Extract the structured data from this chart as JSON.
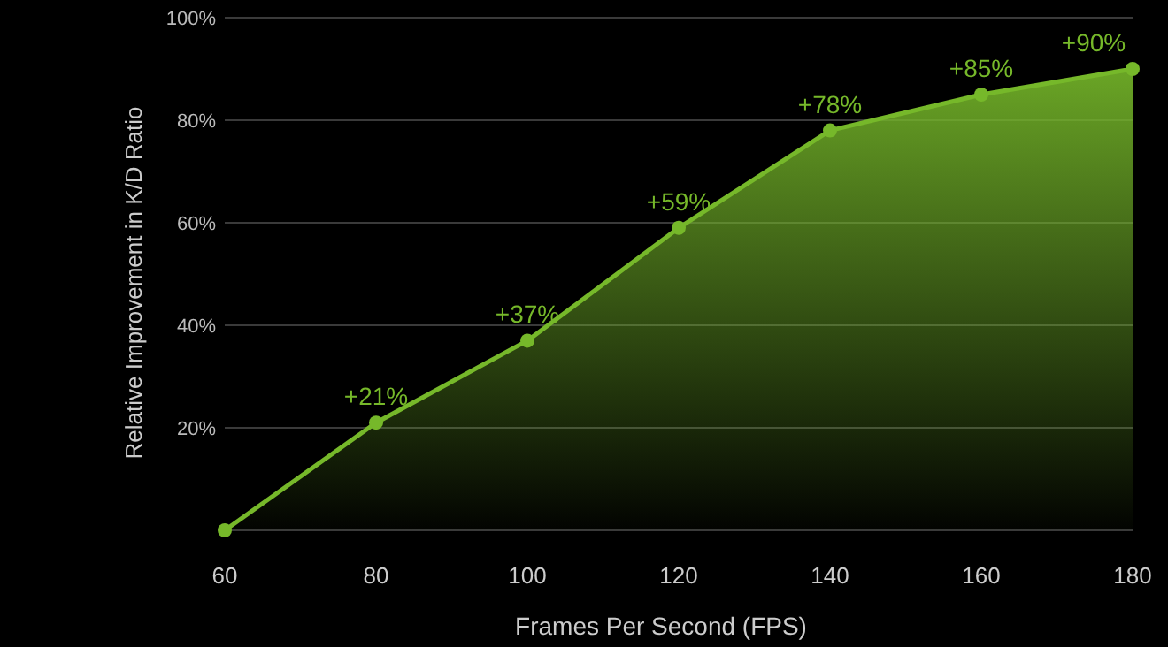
{
  "chart_data": {
    "type": "area",
    "xlabel": "Frames Per Second (FPS)",
    "ylabel": "Relative Improvement in K/D Ratio",
    "x": [
      60,
      80,
      100,
      120,
      140,
      160,
      180
    ],
    "series": [
      {
        "color": "#76b82a",
        "values": [
          0,
          21,
          37,
          59,
          78,
          85,
          90
        ]
      }
    ],
    "value_labels": [
      null,
      "+21%",
      "+37%",
      "+59%",
      "+78%",
      "+85%",
      "+90%"
    ],
    "xlim": [
      60,
      180
    ],
    "xticks": [
      60,
      80,
      100,
      120,
      140,
      160,
      180
    ],
    "ylim": [
      0,
      100
    ],
    "yticks": [
      {
        "value": 0,
        "label": null
      },
      {
        "value": 20,
        "label": "20%"
      },
      {
        "value": 40,
        "label": "40%"
      },
      {
        "value": 60,
        "label": "60%"
      },
      {
        "value": 80,
        "label": "80%"
      },
      {
        "value": 100,
        "label": "100%"
      }
    ],
    "grid": "y",
    "marker": "circle",
    "line_style": "solid"
  }
}
